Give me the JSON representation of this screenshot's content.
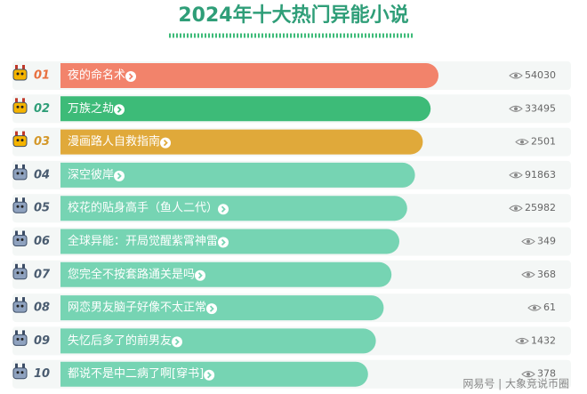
{
  "header": {
    "title": "2024年十大热门异能小说"
  },
  "items": [
    {
      "rank": "01",
      "title": "夜的命名术",
      "views": "54030"
    },
    {
      "rank": "02",
      "title": "万族之劫",
      "views": "33495"
    },
    {
      "rank": "03",
      "title": "漫画路人自救指南",
      "views": "2501"
    },
    {
      "rank": "04",
      "title": "深空彼岸",
      "views": "91863"
    },
    {
      "rank": "05",
      "title": "校花的贴身高手（鱼人二代）",
      "views": "25982"
    },
    {
      "rank": "06",
      "title": "全球异能：开局觉醒紫霄神雷",
      "views": "349"
    },
    {
      "rank": "07",
      "title": "您完全不按套路通关是吗",
      "views": "368"
    },
    {
      "rank": "08",
      "title": "网恋男友脑子好像不太正常",
      "views": "61"
    },
    {
      "rank": "09",
      "title": "失忆后多了的前男友",
      "views": "1432"
    },
    {
      "rank": "10",
      "title": "都说不是中二病了啊[穿书]",
      "views": "378"
    }
  ],
  "footer": {
    "source": "网易号 | 大象竞说币圈"
  }
}
